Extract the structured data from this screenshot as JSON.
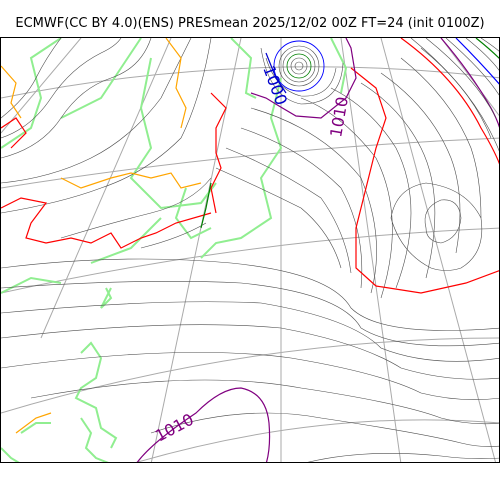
{
  "title": "ECMWF(CC BY 4.0)(ENS) PRESmean 2025/12/02 00Z FT=24 (init 0100Z)",
  "map": {
    "isobar_labels": [
      {
        "text": "1000",
        "color": "#0000cc"
      },
      {
        "text": "1010",
        "color": "#800080"
      },
      {
        "text": "1010",
        "color": "#800080"
      }
    ],
    "colors": {
      "isobar": "#4d4d4d",
      "coast": "#90ee90",
      "graticule": "#aaaaaa",
      "red_contour": "#ff0000",
      "orange_contour": "#ffa500",
      "purple_contour": "#800080",
      "blue_contour": "#0000ff",
      "green_contour": "#008000"
    }
  }
}
